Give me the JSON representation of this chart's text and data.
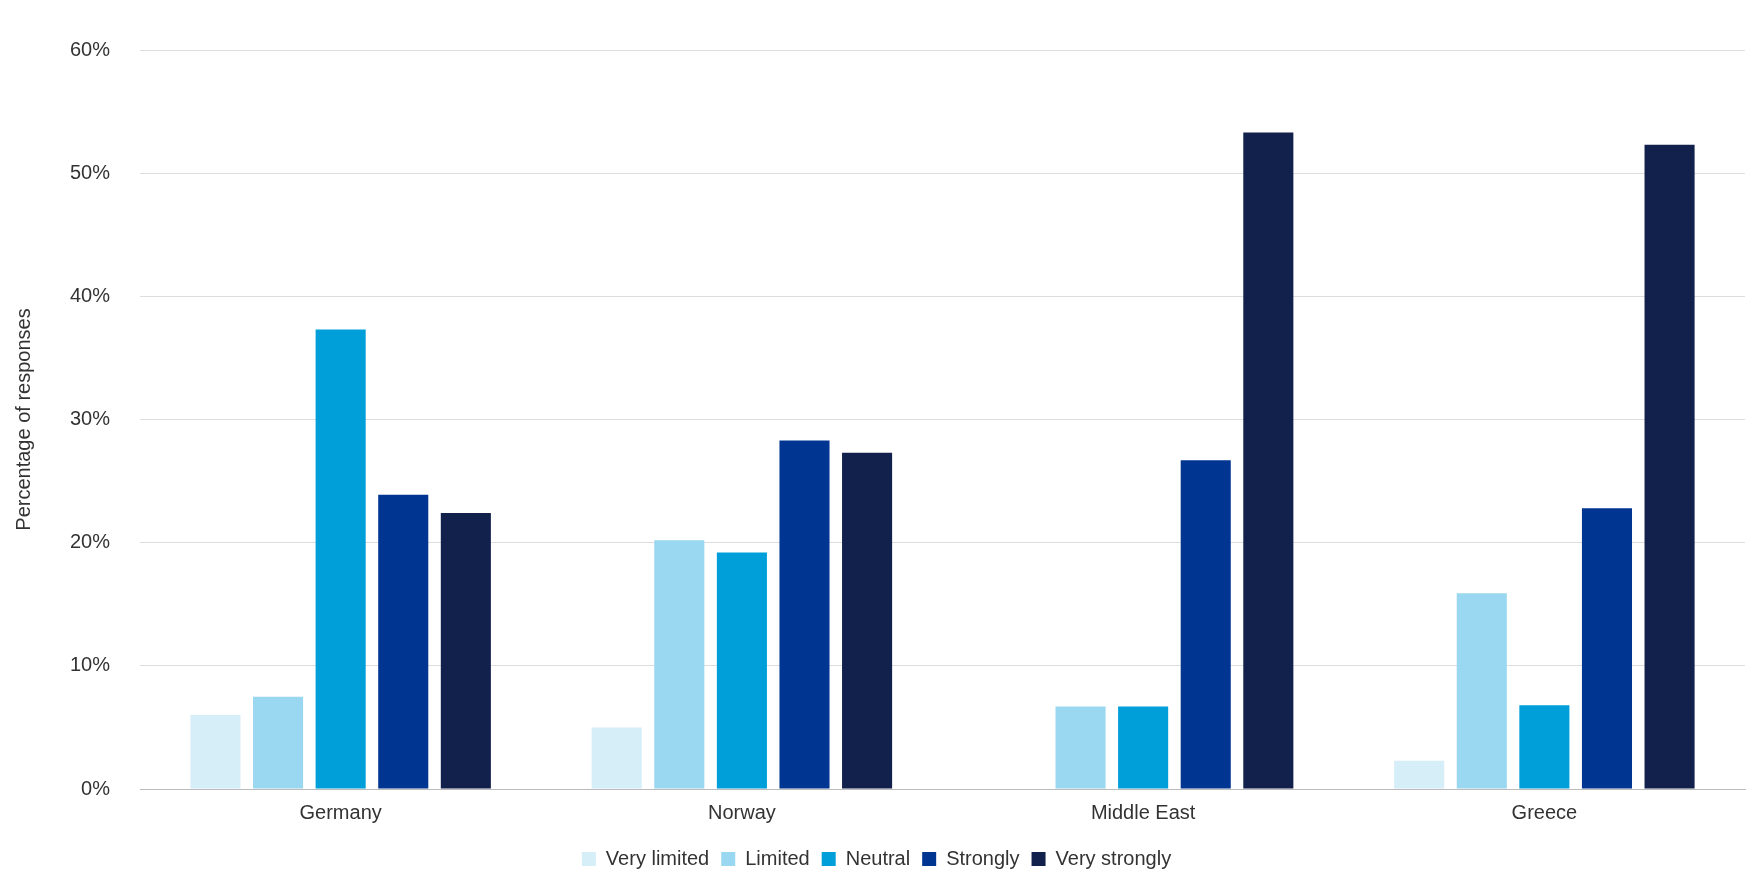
{
  "chart_data": {
    "type": "bar",
    "ylabel": "Percentage of responses",
    "categories": [
      "Germany",
      "Norway",
      "Middle East",
      "Greece"
    ],
    "series": [
      {
        "name": "Very limited",
        "color": "#d6eef8",
        "values": [
          6.0,
          5.0,
          0,
          2.3
        ]
      },
      {
        "name": "Limited",
        "color": "#9ad7f0",
        "values": [
          7.5,
          20.2,
          6.7,
          15.9
        ]
      },
      {
        "name": "Neutral",
        "color": "#009fda",
        "values": [
          37.3,
          19.2,
          6.7,
          6.8
        ]
      },
      {
        "name": "Strongly",
        "color": "#003591",
        "values": [
          23.9,
          28.3,
          26.7,
          22.8
        ]
      },
      {
        "name": "Very strongly",
        "color": "#12214b",
        "values": [
          22.4,
          27.3,
          53.3,
          52.3
        ]
      }
    ],
    "ylim": [
      0,
      60
    ],
    "yticks": [
      {
        "value": 0,
        "label": "0%"
      },
      {
        "value": 10,
        "label": "10%"
      },
      {
        "value": 20,
        "label": "20%"
      },
      {
        "value": 30,
        "label": "30%"
      },
      {
        "value": 40,
        "label": "40%"
      },
      {
        "value": 50,
        "label": "50%"
      },
      {
        "value": 60,
        "label": "60%"
      }
    ],
    "grid": "y",
    "legend": "bottom"
  }
}
